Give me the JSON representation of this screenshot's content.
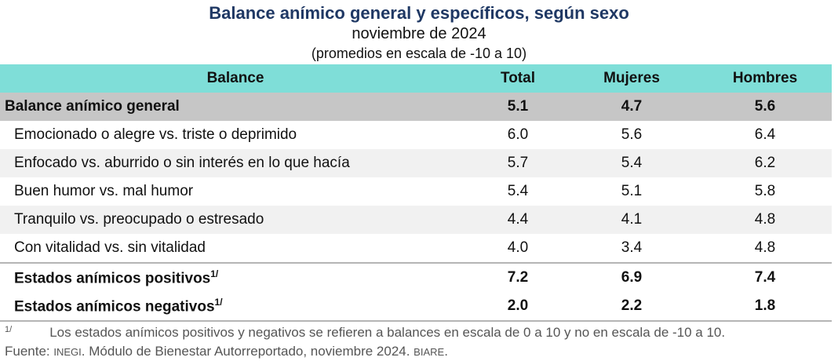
{
  "title": "Balance anímico general y específicos, según sexo",
  "subtitle": "noviembre de 2024",
  "subtitle2": "(promedios en escala de -10 a 10)",
  "headers": {
    "balance": "Balance",
    "total": "Total",
    "mujeres": "Mujeres",
    "hombres": "Hombres"
  },
  "general": {
    "label": "Balance anímico general",
    "total": "5.1",
    "mujeres": "4.7",
    "hombres": "5.6"
  },
  "rows": [
    {
      "label": "Emocionado o alegre vs. triste o deprimido",
      "total": "6.0",
      "mujeres": "5.6",
      "hombres": "6.4"
    },
    {
      "label": "Enfocado vs. aburrido o sin interés en lo que hacía",
      "total": "5.7",
      "mujeres": "5.4",
      "hombres": "6.2"
    },
    {
      "label": "Buen humor vs. mal humor",
      "total": "5.4",
      "mujeres": "5.1",
      "hombres": "5.8"
    },
    {
      "label": "Tranquilo vs. preocupado o estresado",
      "total": "4.4",
      "mujeres": "4.1",
      "hombres": "4.8"
    },
    {
      "label": "Con vitalidad vs. sin vitalidad",
      "total": "4.0",
      "mujeres": "3.4",
      "hombres": "4.8"
    }
  ],
  "positivos": {
    "label": "Estados anímicos positivos",
    "sup": "1/",
    "total": "7.2",
    "mujeres": "6.9",
    "hombres": "7.4"
  },
  "negativos": {
    "label": "Estados anímicos negativos",
    "sup": "1/",
    "total": "2.0",
    "mujeres": "2.2",
    "hombres": "1.8"
  },
  "footnote": {
    "mark": "1/",
    "text": "Los estados anímicos positivos y negativos se refieren a balances en escala de 0 a 10 y no en escala de -10 a 10."
  },
  "source": {
    "prefix": "Fuente:",
    "org": "INEGI",
    "text": ". Módulo de Bienestar Autorreportado, noviembre 2024. ",
    "code": "BIARE",
    "end": "."
  }
}
